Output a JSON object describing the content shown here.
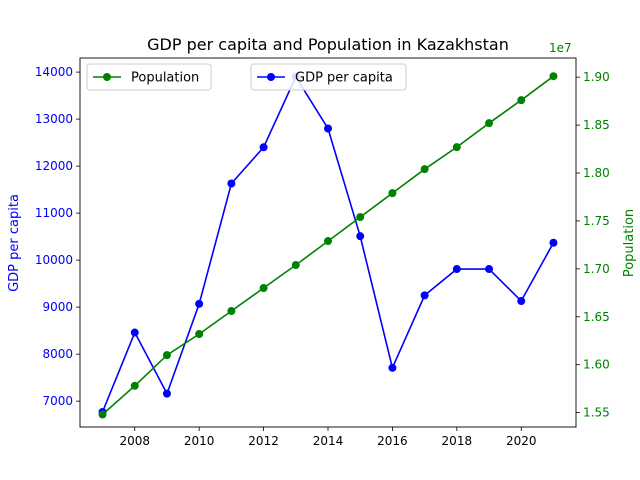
{
  "chart_data": {
    "type": "line",
    "title": "GDP per capita and Population in Kazakhstan",
    "x": [
      2007,
      2008,
      2009,
      2010,
      2011,
      2012,
      2013,
      2014,
      2015,
      2016,
      2017,
      2018,
      2019,
      2020,
      2021
    ],
    "xlim": [
      2006.3,
      2021.7
    ],
    "xticks": [
      2008,
      2010,
      2012,
      2014,
      2016,
      2018,
      2020
    ],
    "grid": false,
    "left_axis": {
      "label": "GDP per capita",
      "color": "#0000ff",
      "ylim": [
        6450,
        14300
      ],
      "ticks": [
        7000,
        8000,
        9000,
        10000,
        11000,
        12000,
        13000,
        14000
      ]
    },
    "right_axis": {
      "label": "Population",
      "color": "#008000",
      "offset_text": "1e7",
      "ylim": [
        15.35,
        19.2
      ],
      "ticks": [
        15.5,
        16.0,
        16.5,
        17.0,
        17.5,
        18.0,
        18.5,
        19.0
      ],
      "tick_labels": [
        "1.55",
        "1.60",
        "1.65",
        "1.70",
        "1.75",
        "1.80",
        "1.85",
        "1.90"
      ]
    },
    "series": [
      {
        "name": "GDP per capita",
        "axis": "left",
        "color": "#0000ff",
        "values": [
          6770,
          8460,
          7160,
          9070,
          11630,
          12400,
          13900,
          12800,
          10510,
          7710,
          9250,
          9810,
          9810,
          9130,
          10370
        ]
      },
      {
        "name": "Population",
        "axis": "right",
        "color": "#008000",
        "values": [
          15.48,
          15.78,
          16.1,
          16.32,
          16.56,
          16.8,
          17.04,
          17.29,
          17.54,
          17.79,
          18.04,
          18.27,
          18.52,
          18.76,
          19.01
        ]
      }
    ],
    "legends": [
      {
        "series": "Population",
        "placement": "upper-left"
      },
      {
        "series": "GDP per capita",
        "placement": "upper-center"
      }
    ]
  }
}
